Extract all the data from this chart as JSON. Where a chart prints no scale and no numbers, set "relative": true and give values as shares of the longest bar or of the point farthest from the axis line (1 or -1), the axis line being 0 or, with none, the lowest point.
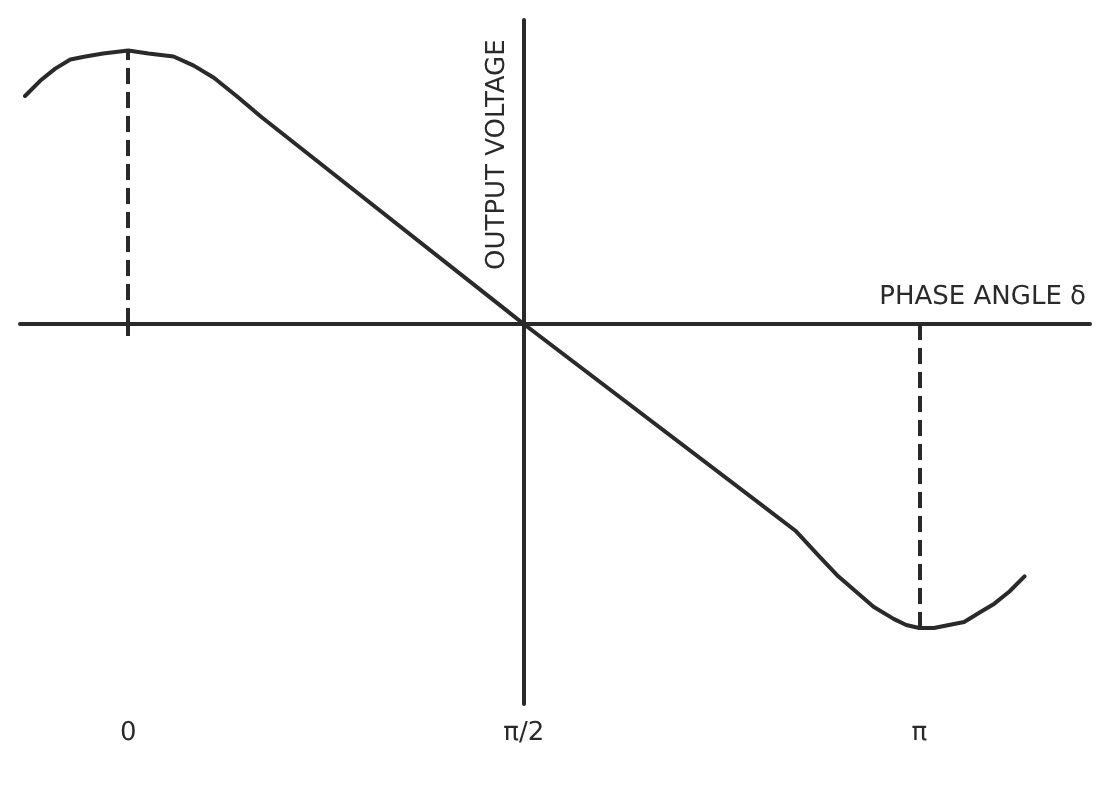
{
  "chart_data": {
    "type": "line",
    "relative": true,
    "xlabel": "PHASE ANGLE δ",
    "ylabel": "OUTPUT VOLTAGE",
    "xlim": [
      -0.43,
      3.82
    ],
    "xticks": [
      0,
      {
        "value": 1.5708,
        "label": "π/2"
      },
      {
        "value": 3.1416,
        "label": "π"
      }
    ],
    "series": [
      {
        "color": "#2a2a2a",
        "x": [
          -0.41,
          -0.35,
          -0.29,
          -0.23,
          -0.17,
          -0.1,
          0,
          0.08,
          0.18,
          0.26,
          0.34,
          0.43,
          0.53,
          1.5708,
          2.65,
          2.74,
          2.82,
          2.89,
          2.96,
          3.04,
          3.09,
          3.1416,
          3.2,
          3.26,
          3.32,
          3.38,
          3.44,
          3.5,
          3.56
        ],
        "values": [
          0.75,
          0.8,
          0.84,
          0.87,
          0.88,
          0.89,
          0.9,
          0.89,
          0.88,
          0.85,
          0.81,
          0.75,
          0.68,
          0,
          -0.68,
          -0.76,
          -0.83,
          -0.88,
          -0.93,
          -0.97,
          -0.99,
          -1,
          -1,
          -0.99,
          -0.98,
          -0.95,
          -0.92,
          -0.88,
          -0.83
        ]
      }
    ],
    "ref_lines": [
      {
        "axis": "x",
        "value": 0,
        "line_style": "dashed"
      },
      {
        "axis": "x",
        "value": 3.1416,
        "line_style": "dashed"
      }
    ],
    "marker": "none",
    "line_style": "solid"
  }
}
